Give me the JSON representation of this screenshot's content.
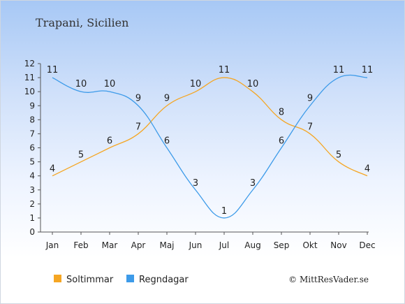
{
  "chart_data": {
    "type": "line",
    "title": "Trapani, Sicilien",
    "categories": [
      "Jan",
      "Feb",
      "Mar",
      "Apr",
      "Maj",
      "Jun",
      "Jul",
      "Aug",
      "Sep",
      "Okt",
      "Nov",
      "Dec"
    ],
    "ylim": [
      0,
      12
    ],
    "yticks": [
      0,
      1,
      2,
      3,
      4,
      5,
      6,
      7,
      8,
      9,
      10,
      11,
      12
    ],
    "grid": false,
    "legend_position": "bottom-left",
    "series": [
      {
        "name": "Soltimmar",
        "color": "#f5a623",
        "values": [
          4,
          5,
          6,
          7,
          9,
          10,
          11,
          10,
          8,
          7,
          5,
          4
        ]
      },
      {
        "name": "Regndagar",
        "color": "#3d9be9",
        "values": [
          11,
          10,
          10,
          9,
          6,
          3,
          1,
          3,
          6,
          9,
          11,
          11
        ]
      }
    ],
    "credit": "© MittResVader.se"
  }
}
